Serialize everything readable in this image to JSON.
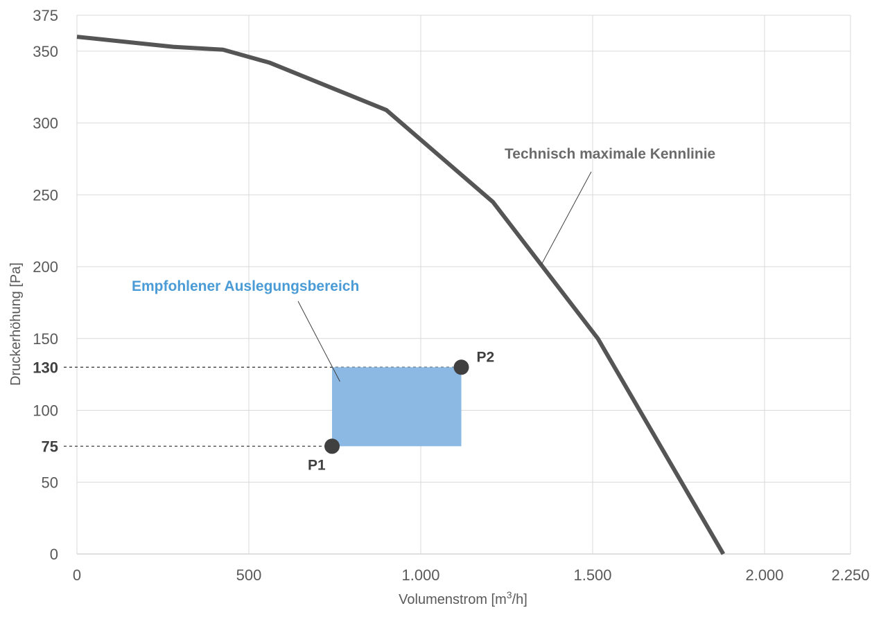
{
  "chart_data": {
    "type": "line",
    "xlabel_main": "Volumenstrom [m",
    "xlabel_sup": "3",
    "xlabel_end": "/h]",
    "ylabel": "Druckerhöhung [Pa]",
    "xlim": [
      0,
      2250
    ],
    "ylim": [
      0,
      375
    ],
    "grid": true,
    "x_ticks": [
      {
        "value": 0,
        "label": "0"
      },
      {
        "value": 500,
        "label": "500"
      },
      {
        "value": 1000,
        "label": "1.000"
      },
      {
        "value": 1500,
        "label": "1.500"
      },
      {
        "value": 2000,
        "label": "2.000"
      },
      {
        "value": 2250,
        "label": "2.250"
      }
    ],
    "y_ticks": [
      {
        "value": 0,
        "label": "0",
        "emphasis": false,
        "grid": true
      },
      {
        "value": 50,
        "label": "50",
        "emphasis": false,
        "grid": true
      },
      {
        "value": 75,
        "label": "75",
        "emphasis": true,
        "grid": false
      },
      {
        "value": 100,
        "label": "100",
        "emphasis": false,
        "grid": true
      },
      {
        "value": 130,
        "label": "130",
        "emphasis": true,
        "grid": false
      },
      {
        "value": 150,
        "label": "150",
        "emphasis": false,
        "grid": true
      },
      {
        "value": 200,
        "label": "200",
        "emphasis": false,
        "grid": true
      },
      {
        "value": 250,
        "label": "250",
        "emphasis": false,
        "grid": true
      },
      {
        "value": 300,
        "label": "300",
        "emphasis": false,
        "grid": true
      },
      {
        "value": 350,
        "label": "350",
        "emphasis": false,
        "grid": true
      },
      {
        "value": 375,
        "label": "375",
        "emphasis": false,
        "grid": true
      }
    ],
    "series": [
      {
        "points": [
          [
            0,
            360
          ],
          [
            280,
            353
          ],
          [
            425,
            351
          ],
          [
            560,
            342
          ],
          [
            900,
            309
          ],
          [
            1210,
            245
          ],
          [
            1515,
            150
          ],
          [
            1880,
            0
          ]
        ],
        "color": "#555555"
      }
    ],
    "region": {
      "x": [
        742,
        1118
      ],
      "y": [
        75,
        130
      ],
      "color": "#8bb9e3"
    },
    "points": [
      {
        "label": "P1",
        "x": 742,
        "y": 75
      },
      {
        "label": "P2",
        "x": 1118,
        "y": 130
      }
    ],
    "annotations": [
      {
        "text": "Technisch maximale Kennlinie",
        "color": "#6b6b6b",
        "target_x": 1350,
        "target_y": 201
      },
      {
        "text": "Empfohlener Auslegungsbereich",
        "color": "#4a9bd6",
        "target_x": 765,
        "target_y": 120
      }
    ]
  }
}
